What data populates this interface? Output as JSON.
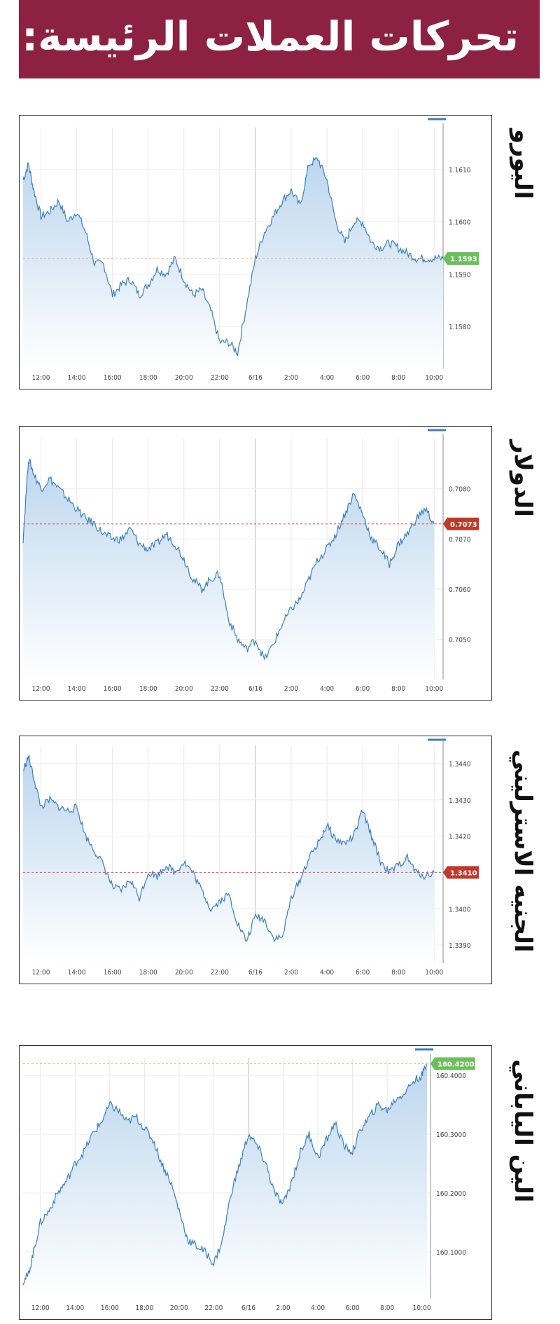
{
  "header": {
    "title": "تحركات العملات الرئيسة:"
  },
  "colors": {
    "banner": "#8c2141",
    "line": "#3a7fc0",
    "area_top": "#bcd6ee",
    "area_bottom": "#ffffff",
    "up_badge": "#6cbf5a",
    "down_badge": "#c0392b"
  },
  "chart_data": [
    {
      "type": "area",
      "title": "اليورو",
      "x_ticks": [
        "12:00",
        "14:00",
        "16:00",
        "18:00",
        "20:00",
        "22:00",
        "6/16",
        "2:00",
        "4:00",
        "6:00",
        "8:00",
        "10:00"
      ],
      "y_ticks": [
        "1.1610",
        "1.1600",
        "1.1590",
        "1.1580"
      ],
      "ylim": [
        1.1572,
        1.1618
      ],
      "reference": 1.1593,
      "current_label": "1.1593",
      "badge": "up",
      "x": [
        0,
        0.3,
        0.6,
        1,
        1.5,
        2,
        2.5,
        3,
        3.5,
        4,
        4.5,
        5,
        5.5,
        6,
        6.5,
        7,
        7.5,
        8,
        8.5,
        9,
        9.5,
        10,
        10.5,
        11,
        11.5,
        12,
        12.5,
        13,
        13.5,
        14,
        14.5,
        15,
        15.5,
        16,
        16.5,
        17,
        17.5,
        18,
        18.5,
        19,
        19.5,
        20,
        20.5,
        21,
        21.5,
        22,
        22.5,
        23,
        23.5
      ],
      "y": [
        1.1608,
        1.1611,
        1.1606,
        1.1601,
        1.1602,
        1.1604,
        1.16,
        1.1602,
        1.1598,
        1.1592,
        1.1592,
        1.1586,
        1.1588,
        1.1589,
        1.1586,
        1.1588,
        1.1591,
        1.159,
        1.1593,
        1.1589,
        1.1586,
        1.1587,
        1.1583,
        1.1577,
        1.1577,
        1.1575,
        1.1584,
        1.1593,
        1.1598,
        1.1601,
        1.1604,
        1.1606,
        1.1603,
        1.1611,
        1.1612,
        1.1608,
        1.16,
        1.1596,
        1.16,
        1.16,
        1.1596,
        1.1595,
        1.1596,
        1.1595,
        1.1594,
        1.1593,
        1.1593,
        1.1593,
        1.1593
      ]
    },
    {
      "type": "area",
      "title": "الدولار",
      "x_ticks": [
        "12:00",
        "14:00",
        "16:00",
        "18:00",
        "20:00",
        "22:00",
        "6/16",
        "2:00",
        "4:00",
        "6:00",
        "8:00",
        "10:00"
      ],
      "y_ticks": [
        "0.7080",
        "0.7070",
        "0.7060",
        "0.7050"
      ],
      "ylim": [
        0.7042,
        0.709
      ],
      "reference": 0.7073,
      "current_label": "0.7073",
      "badge": "down",
      "x": [
        0,
        0.3,
        0.6,
        1,
        1.5,
        2,
        2.5,
        3,
        3.5,
        4,
        4.5,
        5,
        5.5,
        6,
        6.5,
        7,
        7.5,
        8,
        8.5,
        9,
        9.5,
        10,
        10.5,
        11,
        11.5,
        12,
        12.5,
        13,
        13.5,
        14,
        14.5,
        15,
        15.5,
        16,
        16.5,
        17,
        17.5,
        18,
        18.5,
        19,
        19.5,
        20,
        20.5,
        21,
        21.5,
        22,
        22.5,
        23
      ],
      "y": [
        0.707,
        0.7086,
        0.7083,
        0.708,
        0.7082,
        0.708,
        0.7078,
        0.7076,
        0.7074,
        0.7073,
        0.7071,
        0.707,
        0.707,
        0.7072,
        0.7069,
        0.7068,
        0.7069,
        0.7071,
        0.7069,
        0.7066,
        0.7062,
        0.706,
        0.7062,
        0.7063,
        0.7054,
        0.705,
        0.7048,
        0.705,
        0.7046,
        0.7049,
        0.7053,
        0.7056,
        0.7058,
        0.7062,
        0.7066,
        0.7068,
        0.7071,
        0.7075,
        0.7079,
        0.7075,
        0.707,
        0.7068,
        0.7065,
        0.7069,
        0.7071,
        0.7074,
        0.7076,
        0.7073
      ]
    },
    {
      "type": "area",
      "title": "الجنيه الاسترليني",
      "x_ticks": [
        "12:00",
        "14:00",
        "16:00",
        "18:00",
        "20:00",
        "22:00",
        "6/16",
        "2:00",
        "4:00",
        "6:00",
        "8:00",
        "10:00"
      ],
      "y_ticks": [
        "1.3440",
        "1.3430",
        "1.3420",
        "1.3410",
        "1.3400",
        "1.3390"
      ],
      "ylim": [
        1.3385,
        1.3445
      ],
      "reference": 1.341,
      "current_label": "1.3410",
      "badge": "down",
      "x": [
        0,
        0.3,
        0.6,
        1,
        1.5,
        2,
        2.5,
        3,
        3.5,
        4,
        4.5,
        5,
        5.5,
        6,
        6.5,
        7,
        7.5,
        8,
        8.5,
        9,
        9.5,
        10,
        10.5,
        11,
        11.5,
        12,
        12.5,
        13,
        13.5,
        14,
        14.5,
        15,
        15.5,
        16,
        16.5,
        17,
        17.5,
        18,
        18.5,
        19,
        19.5,
        20,
        20.5,
        21,
        21.5,
        22,
        22.5,
        23
      ],
      "y": [
        1.3438,
        1.3442,
        1.3436,
        1.3428,
        1.343,
        1.3428,
        1.3427,
        1.3428,
        1.342,
        1.3416,
        1.3412,
        1.3406,
        1.3405,
        1.3408,
        1.3403,
        1.341,
        1.3409,
        1.3412,
        1.341,
        1.3413,
        1.341,
        1.3405,
        1.34,
        1.3402,
        1.3404,
        1.3396,
        1.3391,
        1.3398,
        1.3397,
        1.3392,
        1.3392,
        1.3403,
        1.3408,
        1.3414,
        1.3418,
        1.3423,
        1.3419,
        1.3418,
        1.342,
        1.3427,
        1.342,
        1.3413,
        1.341,
        1.3412,
        1.3414,
        1.341,
        1.3409,
        1.341
      ]
    },
    {
      "type": "area",
      "title": "الين الياباني",
      "x_ticks": [
        "12:00",
        "14:00",
        "16:00",
        "18:00",
        "20:00",
        "22:00",
        "6/16",
        "2:00",
        "4:00",
        "6:00",
        "8:00",
        "10:00"
      ],
      "y_ticks": [
        "160.4000",
        "160.3000",
        "160.2000",
        "160.1000"
      ],
      "ylim": [
        160.02,
        160.43
      ],
      "reference": 160.42,
      "current_label": "160.4200",
      "badge": "up",
      "x": [
        0,
        0.3,
        0.6,
        1,
        1.5,
        2,
        2.5,
        3,
        3.5,
        4,
        4.5,
        5,
        5.5,
        6,
        6.5,
        7,
        7.5,
        8,
        8.5,
        9,
        9.5,
        10,
        10.5,
        11,
        11.5,
        12,
        12.5,
        13,
        13.5,
        14,
        14.5,
        15,
        15.5,
        16,
        16.5,
        17,
        17.5,
        18,
        18.5,
        19,
        19.5,
        20,
        20.5,
        21,
        21.5,
        22,
        22.5,
        23,
        23.3
      ],
      "y": [
        160.05,
        160.06,
        160.1,
        160.15,
        160.17,
        160.2,
        160.22,
        160.25,
        160.27,
        160.3,
        160.32,
        160.35,
        160.34,
        160.32,
        160.33,
        160.31,
        160.29,
        160.25,
        160.22,
        160.17,
        160.12,
        160.11,
        160.1,
        160.08,
        160.12,
        160.2,
        160.25,
        160.3,
        160.28,
        160.25,
        160.2,
        160.18,
        160.22,
        160.27,
        160.3,
        160.26,
        160.29,
        160.32,
        160.28,
        160.27,
        160.31,
        160.33,
        160.35,
        160.34,
        160.36,
        160.37,
        160.39,
        160.4,
        160.42
      ]
    }
  ]
}
